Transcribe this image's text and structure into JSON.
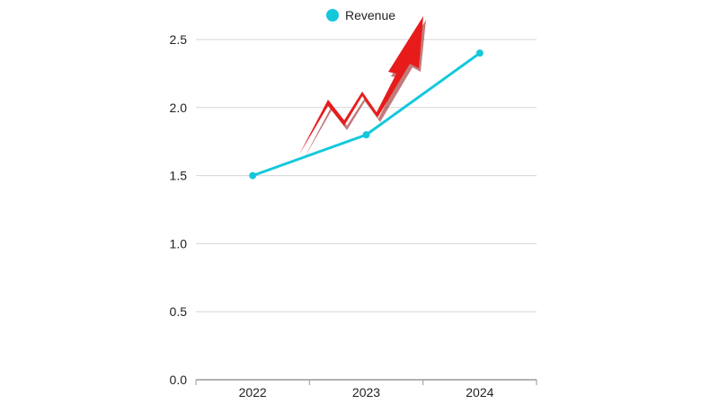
{
  "chart_data": {
    "type": "line",
    "title": "",
    "xlabel": "",
    "ylabel": "",
    "categories": [
      "2022",
      "2023",
      "2024"
    ],
    "series": [
      {
        "name": "Revenue",
        "values": [
          1.5,
          1.8,
          2.4
        ],
        "color": "#14c8dc"
      }
    ],
    "ylim": [
      0,
      2.5
    ],
    "yticks": [
      "0.0",
      "0.5",
      "1.0",
      "1.5",
      "2.0",
      "2.5"
    ],
    "grid": true,
    "legend_position": "top-center",
    "decoration": {
      "name": "red-trend-arrow-icon",
      "color": "#e81b1b"
    }
  }
}
